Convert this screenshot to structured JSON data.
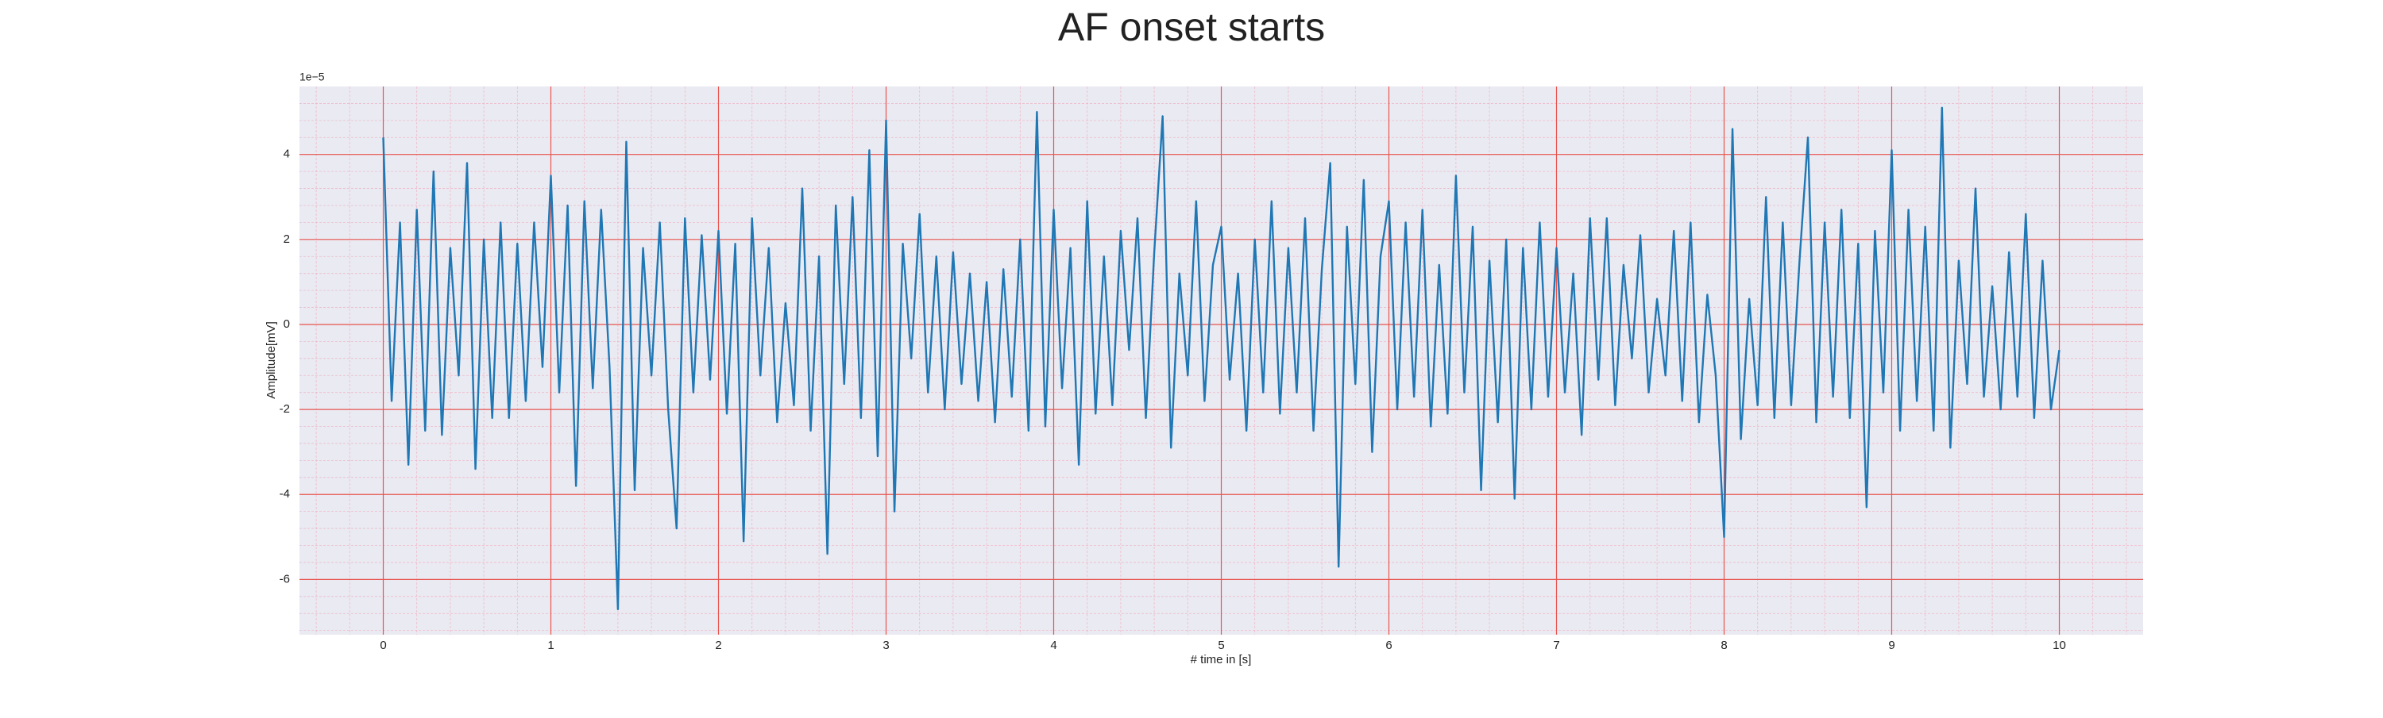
{
  "chart_data": {
    "type": "line",
    "title": "AF onset starts",
    "xlabel": "# time in [s]",
    "ylabel": "Amplitude[mV]",
    "y_offset_label": "1e−5",
    "xlim": [
      -0.5,
      10.5
    ],
    "ylim": [
      -7.3,
      5.6
    ],
    "xticks": [
      0,
      1,
      2,
      3,
      4,
      5,
      6,
      7,
      8,
      9,
      10
    ],
    "yticks": [
      -6,
      -4,
      -2,
      0,
      2,
      4
    ],
    "grid": true,
    "grid_color": "#e8554e",
    "minor_grid_color": "#f2a5b8",
    "minor_divisions": 5,
    "background": "#eaeaf2",
    "x": [
      0,
      0.05,
      0.1,
      0.15,
      0.2,
      0.25,
      0.3,
      0.35,
      0.4,
      0.45,
      0.5,
      0.55,
      0.6,
      0.65,
      0.7,
      0.75,
      0.8,
      0.85,
      0.9,
      0.95,
      1,
      1.05,
      1.1,
      1.15,
      1.2,
      1.25,
      1.3,
      1.35,
      1.4,
      1.45,
      1.5,
      1.55,
      1.6,
      1.65,
      1.7,
      1.75,
      1.8,
      1.85,
      1.9,
      1.95,
      2,
      2.05,
      2.1,
      2.15,
      2.2,
      2.25,
      2.3,
      2.35,
      2.4,
      2.45,
      2.5,
      2.55,
      2.6,
      2.65,
      2.7,
      2.75,
      2.8,
      2.85,
      2.9,
      2.95,
      3,
      3.05,
      3.1,
      3.15,
      3.2,
      3.25,
      3.3,
      3.35,
      3.4,
      3.45,
      3.5,
      3.55,
      3.6,
      3.65,
      3.7,
      3.75,
      3.8,
      3.85,
      3.9,
      3.95,
      4,
      4.05,
      4.1,
      4.15,
      4.2,
      4.25,
      4.3,
      4.35,
      4.4,
      4.45,
      4.5,
      4.55,
      4.6,
      4.65,
      4.7,
      4.75,
      4.8,
      4.85,
      4.9,
      4.95,
      5,
      5.05,
      5.1,
      5.15,
      5.2,
      5.25,
      5.3,
      5.35,
      5.4,
      5.45,
      5.5,
      5.55,
      5.6,
      5.65,
      5.7,
      5.75,
      5.8,
      5.85,
      5.9,
      5.95,
      6,
      6.05,
      6.1,
      6.15,
      6.2,
      6.25,
      6.3,
      6.35,
      6.4,
      6.45,
      6.5,
      6.55,
      6.6,
      6.65,
      6.7,
      6.75,
      6.8,
      6.85,
      6.9,
      6.95,
      7,
      7.05,
      7.1,
      7.15,
      7.2,
      7.25,
      7.3,
      7.35,
      7.4,
      7.45,
      7.5,
      7.55,
      7.6,
      7.65,
      7.7,
      7.75,
      7.8,
      7.85,
      7.9,
      7.95,
      8,
      8.05,
      8.1,
      8.15,
      8.2,
      8.25,
      8.3,
      8.35,
      8.4,
      8.45,
      8.5,
      8.55,
      8.6,
      8.65,
      8.7,
      8.75,
      8.8,
      8.85,
      8.9,
      8.95,
      9,
      9.05,
      9.1,
      9.15,
      9.2,
      9.25,
      9.3,
      9.35,
      9.4,
      9.45,
      9.5,
      9.55,
      9.6,
      9.65,
      9.7,
      9.75,
      9.8,
      9.85,
      9.9,
      9.95,
      10
    ],
    "series": [
      {
        "color": "#1f77b4",
        "values": [
          4.4,
          -1.8,
          2.4,
          -3.3,
          2.7,
          -2.5,
          3.6,
          -2.6,
          1.8,
          -1.2,
          3.8,
          -3.4,
          2.0,
          -2.2,
          2.4,
          -2.2,
          1.9,
          -1.8,
          2.4,
          -1.0,
          3.5,
          -1.6,
          2.8,
          -3.8,
          2.9,
          -1.5,
          2.7,
          -1.0,
          -6.7,
          4.3,
          -3.9,
          1.8,
          -1.2,
          2.4,
          -2.0,
          -4.8,
          2.5,
          -1.6,
          2.1,
          -1.3,
          2.2,
          -2.1,
          1.9,
          -5.1,
          2.5,
          -1.2,
          1.8,
          -2.3,
          0.5,
          -1.9,
          3.2,
          -2.5,
          1.6,
          -5.4,
          2.8,
          -1.4,
          3.0,
          -2.2,
          4.1,
          -3.1,
          4.8,
          -4.4,
          1.9,
          -0.8,
          2.6,
          -1.6,
          1.6,
          -2.0,
          1.7,
          -1.4,
          1.2,
          -1.8,
          1.0,
          -2.3,
          1.3,
          -1.7,
          2.0,
          -2.5,
          5.0,
          -2.4,
          2.7,
          -1.5,
          1.8,
          -3.3,
          2.9,
          -2.1,
          1.6,
          -1.9,
          2.2,
          -0.6,
          2.5,
          -2.2,
          1.7,
          4.9,
          -2.9,
          1.2,
          -1.2,
          2.9,
          -1.8,
          1.4,
          2.3,
          -1.3,
          1.2,
          -2.5,
          2.0,
          -1.6,
          2.9,
          -2.1,
          1.8,
          -1.6,
          2.5,
          -2.5,
          1.3,
          3.8,
          -5.7,
          2.3,
          -1.4,
          3.4,
          -3.0,
          1.6,
          2.9,
          -2.0,
          2.4,
          -1.7,
          2.7,
          -2.4,
          1.4,
          -2.1,
          3.5,
          -1.6,
          2.3,
          -3.9,
          1.5,
          -2.3,
          2.0,
          -4.1,
          1.8,
          -2.0,
          2.4,
          -1.7,
          1.8,
          -1.6,
          1.2,
          -2.6,
          2.5,
          -1.3,
          2.5,
          -1.9,
          1.4,
          -0.8,
          2.1,
          -1.6,
          0.6,
          -1.2,
          2.2,
          -1.8,
          2.4,
          -2.3,
          0.7,
          -1.2,
          -5.0,
          4.6,
          -2.7,
          0.6,
          -1.9,
          3.0,
          -2.2,
          2.4,
          -1.9,
          1.5,
          4.4,
          -2.3,
          2.4,
          -1.7,
          2.7,
          -2.2,
          1.9,
          -4.3,
          2.2,
          -1.6,
          4.1,
          -2.5,
          2.7,
          -1.8,
          2.3,
          -2.5,
          5.1,
          -2.9,
          1.5,
          -1.4,
          3.2,
          -1.7,
          0.9,
          -2.0,
          1.7,
          -1.7,
          2.6,
          -2.2,
          1.5,
          -2.0,
          -0.6
        ]
      }
    ]
  }
}
